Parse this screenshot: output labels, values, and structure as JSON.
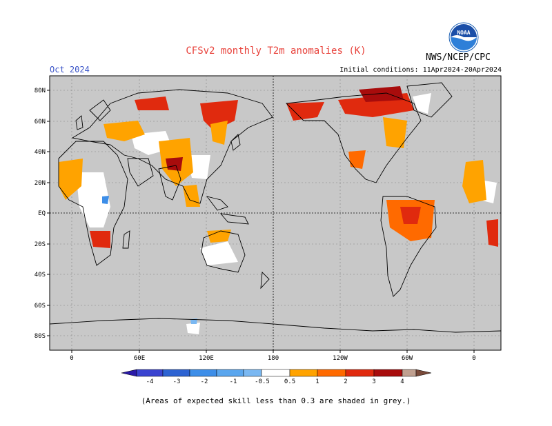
{
  "title": "CFSv2 monthly T2m anomalies (K)",
  "forecast_month": "Oct 2024",
  "initial_conditions": "Initial conditions: 11Apr2024-20Apr2024",
  "agency": "NWS/NCEP/CPC",
  "logo_text": "NOAA",
  "footnote": "(Areas of expected skill less than 0.3 are shaded in grey.)",
  "map": {
    "lat_labels": [
      "80N",
      "60N",
      "40N",
      "20N",
      "EQ",
      "20S",
      "40S",
      "60S",
      "80S"
    ],
    "lon_labels": [
      "0",
      "60E",
      "120E",
      "180",
      "120W",
      "60W",
      "0"
    ],
    "colors": {
      "low_skill_grey": "#c8c8c8",
      "land_outline": "#000000"
    }
  },
  "colorbar": {
    "labels": [
      "-4",
      "-3",
      "-2",
      "-1",
      "-0.5",
      "0.5",
      "1",
      "2",
      "3",
      "4"
    ],
    "colors": [
      "#2a1aa8",
      "#3a43d0",
      "#2d63d2",
      "#3d8ee8",
      "#7ab8f2",
      "#ffffff",
      "#ffa300",
      "#ff6a00",
      "#e02a0e",
      "#a80c0c",
      "#c0a090",
      "#7a4a3a"
    ]
  }
}
